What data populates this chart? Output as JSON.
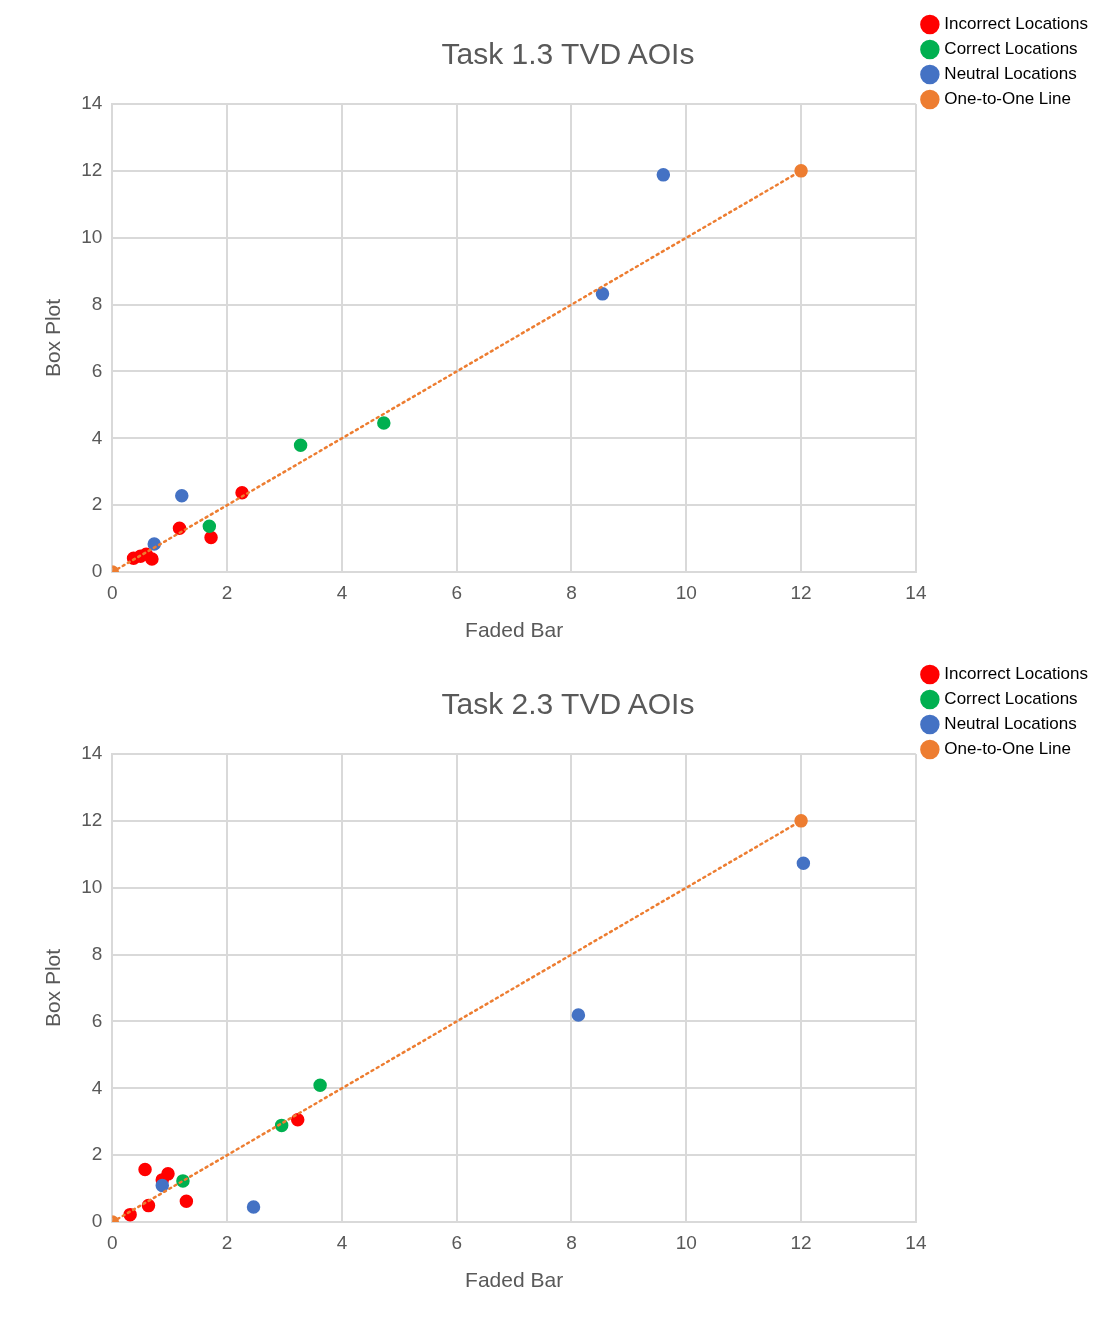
{
  "chart_data": [
    {
      "type": "scatter",
      "title": "Task 1.3 TVD AOIs",
      "xlabel": "Faded Bar",
      "ylabel": "Box Plot",
      "xlim": [
        0,
        14
      ],
      "ylim": [
        0,
        14
      ],
      "xticks": [
        0,
        2,
        4,
        6,
        8,
        10,
        12,
        14
      ],
      "yticks": [
        0,
        2,
        4,
        6,
        8,
        10,
        12,
        14
      ],
      "grid": true,
      "legend": "top right",
      "marker": "circle",
      "series": [
        {
          "name": "Incorrect Locations",
          "color": "#ff0000",
          "x": [
            0.37,
            0.49,
            0.59,
            0.69,
            1.17,
            1.72,
            2.26
          ],
          "values": [
            0.41,
            0.47,
            0.53,
            0.39,
            1.31,
            1.03,
            2.37
          ]
        },
        {
          "name": "Correct Locations",
          "color": "#00b050",
          "x": [
            1.69,
            3.28,
            4.73
          ],
          "values": [
            1.37,
            3.79,
            4.46
          ]
        },
        {
          "name": "Neutral Locations",
          "color": "#4472c4",
          "x": [
            0.73,
            1.21,
            8.54,
            9.6
          ],
          "values": [
            0.84,
            2.28,
            8.32,
            11.88
          ]
        },
        {
          "name": "One-to-One Line",
          "type": "line",
          "line_style": "dotted",
          "color": "#ed7d31",
          "x": [
            0,
            12
          ],
          "values": [
            0,
            12
          ]
        }
      ]
    },
    {
      "type": "scatter",
      "title": "Task 2.3 TVD AOIs",
      "xlabel": "Faded Bar",
      "ylabel": "Box Plot",
      "xlim": [
        0,
        14
      ],
      "ylim": [
        0,
        14
      ],
      "xticks": [
        0,
        2,
        4,
        6,
        8,
        10,
        12,
        14
      ],
      "yticks": [
        0,
        2,
        4,
        6,
        8,
        10,
        12,
        14
      ],
      "grid": true,
      "legend": "top right",
      "marker": "circle",
      "series": [
        {
          "name": "Incorrect Locations",
          "color": "#ff0000",
          "x": [
            0.31,
            0.63,
            0.57,
            0.87,
            0.97,
            1.29,
            3.23
          ],
          "values": [
            0.22,
            0.49,
            1.57,
            1.26,
            1.44,
            0.62,
            3.06
          ]
        },
        {
          "name": "Correct Locations",
          "color": "#00b050",
          "x": [
            1.23,
            2.95,
            3.62
          ],
          "values": [
            1.23,
            2.89,
            4.09
          ]
        },
        {
          "name": "Neutral Locations",
          "color": "#4472c4",
          "x": [
            0.87,
            2.46,
            8.12,
            12.04
          ],
          "values": [
            1.09,
            0.45,
            6.19,
            10.73
          ]
        },
        {
          "name": "One-to-One Line",
          "type": "line",
          "line_style": "dotted",
          "color": "#ed7d31",
          "x": [
            0,
            12
          ],
          "values": [
            0,
            12
          ]
        }
      ]
    }
  ]
}
